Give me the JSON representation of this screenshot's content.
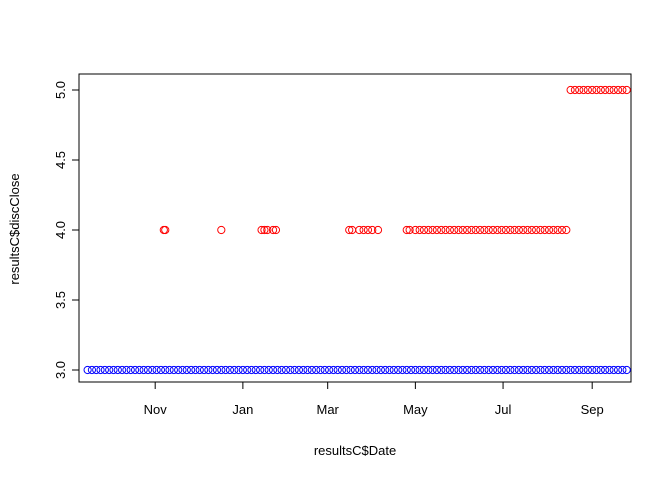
{
  "chart_data": {
    "type": "scatter",
    "title": "",
    "xlabel": "resultsC$Date",
    "ylabel": "resultsC$discClose",
    "xlim": [
      "2014-09-09",
      "2015-09-28"
    ],
    "ylim": [
      3.0,
      5.0
    ],
    "x_ticks": [
      {
        "label": "Nov",
        "date": "2014-11-01"
      },
      {
        "label": "Jan",
        "date": "2015-01-01"
      },
      {
        "label": "Mar",
        "date": "2015-03-01"
      },
      {
        "label": "May",
        "date": "2015-05-01"
      },
      {
        "label": "Jul",
        "date": "2015-07-01"
      },
      {
        "label": "Sep",
        "date": "2015-09-01"
      }
    ],
    "y_ticks": [
      "3.0",
      "3.5",
      "4.0",
      "4.5",
      "5.0"
    ],
    "grid": false,
    "marker": "open-circle",
    "series": [
      {
        "color": "#0000ff",
        "points": [
          {
            "date_start": "2014-09-15",
            "date_end": "2015-09-25",
            "step_days": 3,
            "y": 3.0
          }
        ]
      },
      {
        "color": "#ff0000",
        "points": [
          {
            "date": "2014-11-07",
            "y": 4.0
          },
          {
            "date": "2014-11-08",
            "y": 4.0
          },
          {
            "date": "2014-12-17",
            "y": 4.0
          },
          {
            "date": "2015-01-14",
            "y": 4.0
          },
          {
            "date": "2015-01-16",
            "y": 4.0
          },
          {
            "date": "2015-01-18",
            "y": 4.0
          },
          {
            "date": "2015-01-22",
            "y": 4.0
          },
          {
            "date": "2015-01-24",
            "y": 4.0
          },
          {
            "date": "2015-03-16",
            "y": 4.0
          },
          {
            "date": "2015-03-18",
            "y": 4.0
          },
          {
            "date": "2015-03-23",
            "y": 4.0
          },
          {
            "date": "2015-03-26",
            "y": 4.0
          },
          {
            "date": "2015-03-29",
            "y": 4.0
          },
          {
            "date": "2015-04-01",
            "y": 4.0
          },
          {
            "date": "2015-04-05",
            "y": 4.0
          },
          {
            "date": "2015-04-25",
            "y": 4.0
          },
          {
            "date": "2015-04-27",
            "y": 4.0
          },
          {
            "date_start": "2015-05-01",
            "date_end": "2015-08-14",
            "step_days": 3,
            "y": 4.0
          },
          {
            "date_start": "2015-08-17",
            "date_end": "2015-09-25",
            "step_days": 3,
            "y": 5.0
          }
        ]
      }
    ]
  }
}
